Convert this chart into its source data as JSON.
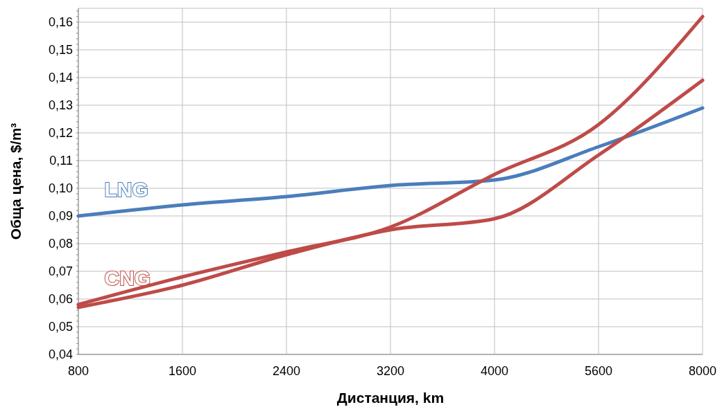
{
  "chart_data": {
    "type": "line",
    "xlabel": "Дистанция, km",
    "ylabel": "Обща цена, $/m³",
    "categories": [
      "800",
      "1600",
      "2400",
      "3200",
      "4000",
      "5600",
      "8000"
    ],
    "series": [
      {
        "name": "LNG",
        "color": "#4a7ebb",
        "values": [
          0.09,
          0.094,
          0.097,
          0.101,
          0.103,
          0.115,
          0.129
        ]
      },
      {
        "name": "CNG",
        "color": "#be4b48",
        "values": [
          0.058,
          0.068,
          0.077,
          0.086,
          0.105,
          0.123,
          0.162
        ]
      },
      {
        "color": "#be4b48",
        "values": [
          0.057,
          0.065,
          0.076,
          0.085,
          0.089,
          0.112,
          0.139
        ]
      }
    ],
    "ylim": [
      0.04,
      0.165
    ],
    "yticks": [
      {
        "value": 0.04,
        "label": "0,04"
      },
      {
        "value": 0.05,
        "label": "0,05"
      },
      {
        "value": 0.06,
        "label": "0,06"
      },
      {
        "value": 0.07,
        "label": "0,07"
      },
      {
        "value": 0.08,
        "label": "0,08"
      },
      {
        "value": 0.09,
        "label": "0,09"
      },
      {
        "value": 0.1,
        "label": "0,10"
      },
      {
        "value": 0.11,
        "label": "0,11"
      },
      {
        "value": 0.12,
        "label": "0,12"
      },
      {
        "value": 0.13,
        "label": "0,13"
      },
      {
        "value": 0.14,
        "label": "0,14"
      },
      {
        "value": 0.15,
        "label": "0,15"
      },
      {
        "value": 0.16,
        "label": "0,16"
      }
    ],
    "grid": true,
    "line_style": "solid",
    "marker": "none"
  }
}
